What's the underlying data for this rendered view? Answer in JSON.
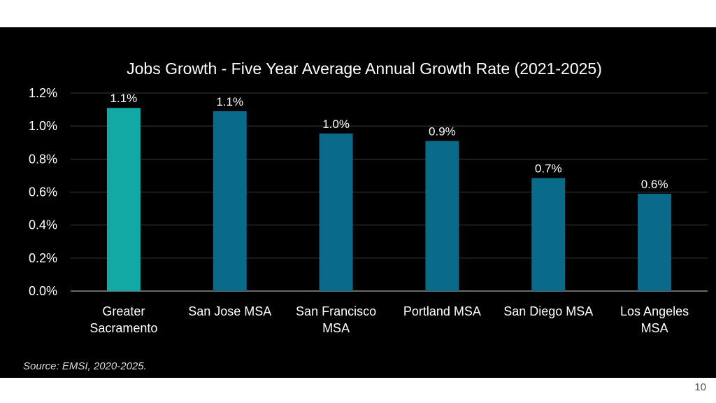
{
  "slide": {
    "source": "Source:  EMSI, 2020-2025.",
    "page_number": "10"
  },
  "chart_data": {
    "type": "bar",
    "title": "Jobs Growth - Five Year Average Annual Growth Rate (2021-2025)",
    "xlabel": "",
    "ylabel": "",
    "categories": [
      [
        "Greater",
        "Sacramento"
      ],
      [
        "San Jose MSA"
      ],
      [
        "San Francisco",
        "MSA"
      ],
      [
        "Portland MSA"
      ],
      [
        "San Diego MSA"
      ],
      [
        "Los Angeles",
        "MSA"
      ]
    ],
    "values": [
      1.11,
      1.09,
      0.955,
      0.91,
      0.685,
      0.59
    ],
    "data_labels": [
      "1.1%",
      "1.1%",
      "1.0%",
      "0.9%",
      "0.7%",
      "0.6%"
    ],
    "bar_colors": [
      "#12a8a4",
      "#0a6a8a",
      "#0a6a8a",
      "#0a6a8a",
      "#0a6a8a",
      "#0a6a8a"
    ],
    "ylim": [
      0,
      1.2
    ],
    "yticks": [
      0.0,
      0.2,
      0.4,
      0.6,
      0.8,
      1.0,
      1.2
    ],
    "ytick_labels": [
      "0.0%",
      "0.2%",
      "0.4%",
      "0.6%",
      "0.8%",
      "1.0%",
      "1.2%"
    ],
    "grid": true,
    "legend": "none"
  }
}
